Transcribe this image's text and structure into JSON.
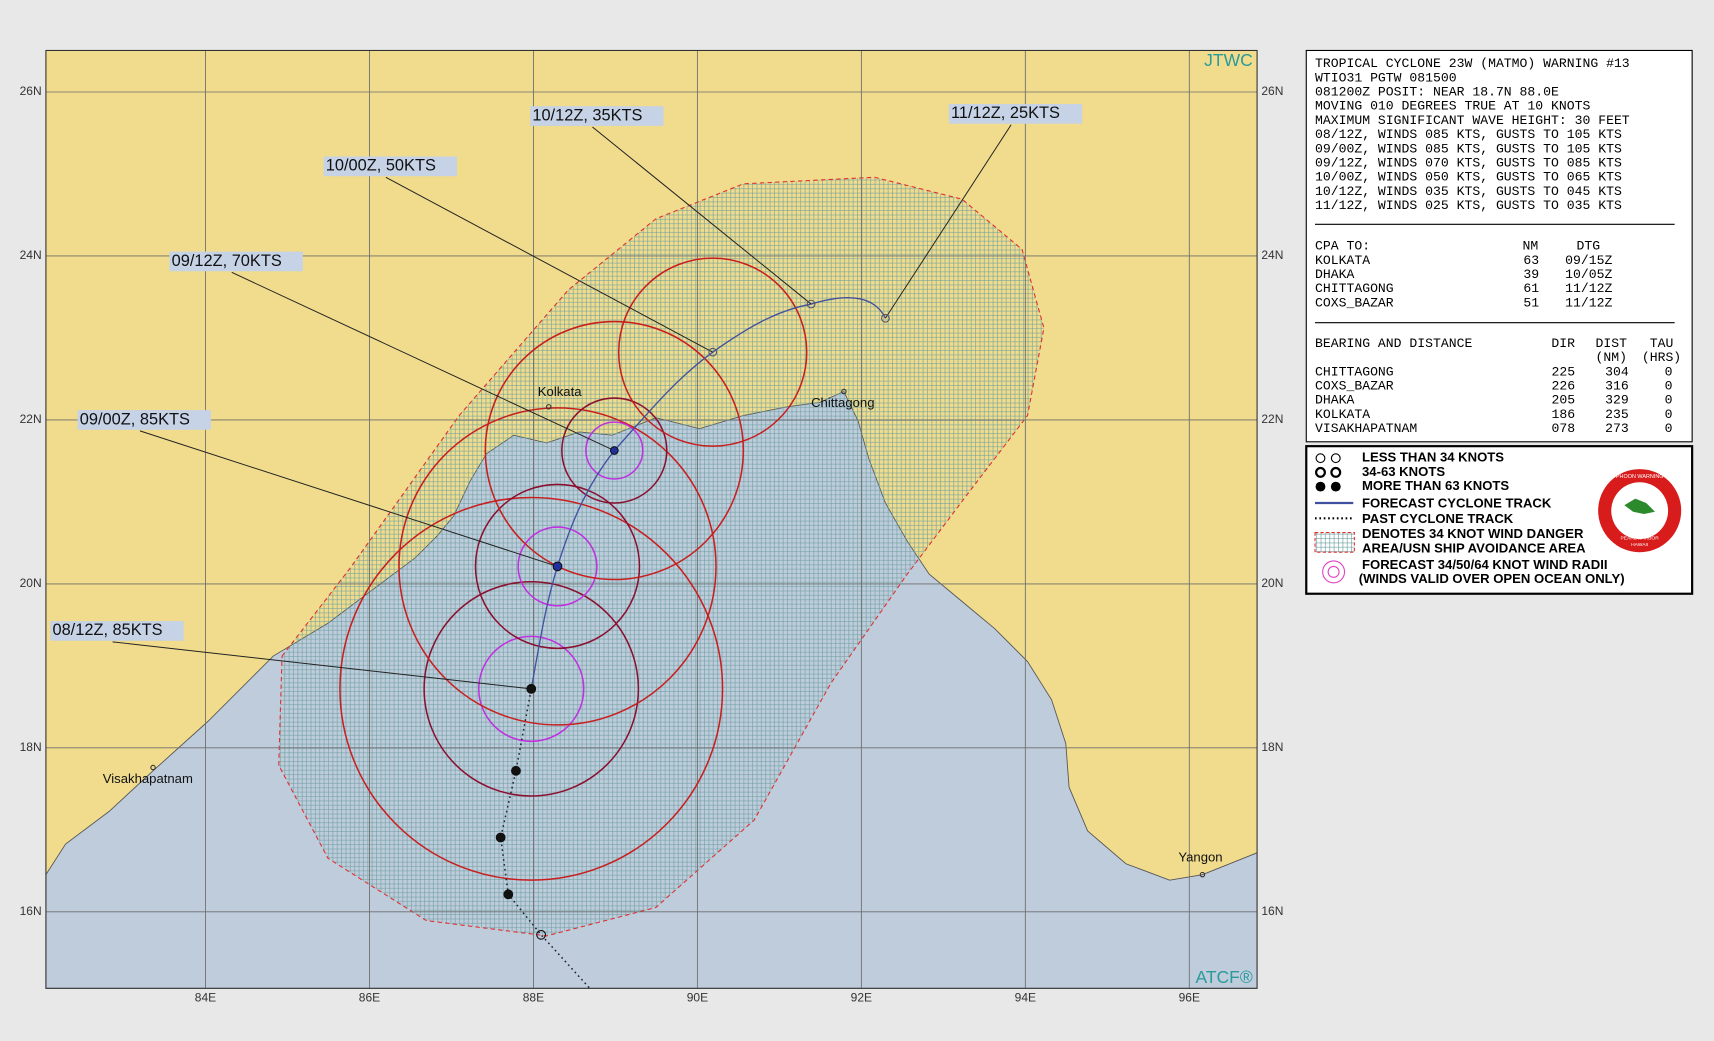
{
  "map": {
    "credit_top": "JTWC",
    "credit_bottom": "ATCF®",
    "lat_labels": [
      "26N",
      "24N",
      "22N",
      "20N",
      "18N",
      "16N"
    ],
    "lon_labels": [
      "84E",
      "86E",
      "88E",
      "90E",
      "92E",
      "94E",
      "96E"
    ],
    "places": [
      "Kolkata",
      "Chittagong",
      "Visakhapatnam",
      "Yangon"
    ],
    "forecast_labels": [
      "08/12Z, 85KTS",
      "09/00Z, 85KTS",
      "09/12Z, 70KTS",
      "10/00Z, 50KTS",
      "10/12Z, 35KTS",
      "11/12Z, 25KTS"
    ]
  },
  "warning": {
    "lines": [
      "TROPICAL CYCLONE 23W (MATMO) WARNING #13",
      "WTIO31 PGTW 081500",
      "081200Z POSIT: NEAR 18.7N 88.0E",
      "MOVING 010 DEGREES TRUE AT 10 KNOTS",
      "MAXIMUM SIGNIFICANT WAVE HEIGHT: 30 FEET",
      "08/12Z, WINDS 085 KTS, GUSTS TO 105 KTS",
      "09/00Z, WINDS 085 KTS, GUSTS TO 105 KTS",
      "09/12Z, WINDS 070 KTS, GUSTS TO 085 KTS",
      "10/00Z, WINDS 050 KTS, GUSTS TO 065 KTS",
      "10/12Z, WINDS 035 KTS, GUSTS TO 045 KTS",
      "11/12Z, WINDS 025 KTS, GUSTS TO 035 KTS"
    ],
    "cpa": {
      "header": [
        "CPA TO:",
        "NM",
        "DTG"
      ],
      "rows": [
        [
          "KOLKATA",
          "63",
          "09/15Z"
        ],
        [
          "DHAKA",
          "39",
          "10/05Z"
        ],
        [
          "CHITTAGONG",
          "61",
          "11/12Z"
        ],
        [
          "COXS_BAZAR",
          "51",
          "11/12Z"
        ]
      ]
    },
    "bearing": {
      "header": [
        "BEARING AND DISTANCE",
        "DIR",
        "DIST",
        "TAU"
      ],
      "units": [
        "(NM)",
        "(HRS)"
      ],
      "rows": [
        [
          "CHITTAGONG",
          "225",
          "304",
          "0"
        ],
        [
          "COXS_BAZAR",
          "226",
          "316",
          "0"
        ],
        [
          "DHAKA",
          "205",
          "329",
          "0"
        ],
        [
          "KOLKATA",
          "186",
          "235",
          "0"
        ],
        [
          "VISAKHAPATNAM",
          "078",
          "273",
          "0"
        ]
      ]
    }
  },
  "legend": {
    "items": [
      "LESS THAN 34 KNOTS",
      "34-63 KNOTS",
      "MORE THAN 63 KNOTS",
      "FORECAST CYCLONE TRACK",
      "PAST CYCLONE TRACK",
      "DENOTES 34 KNOT WIND DANGER",
      "AREA/USN SHIP AVOIDANCE AREA",
      "FORECAST 34/50/64 KNOT WIND RADII",
      "(WINDS VALID OVER OPEN OCEAN ONLY)"
    ],
    "logo": [
      "JOINT TYPHOON WARNING CENTER",
      "PEARL HARBOR",
      "HAWAII"
    ]
  }
}
